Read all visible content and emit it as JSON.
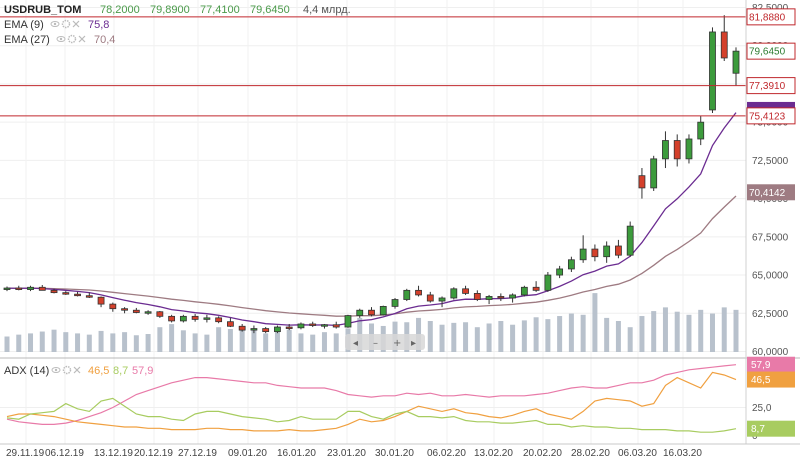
{
  "legend": {
    "symbol": "USDRUB_TOM",
    "open": "78,2000",
    "high": "79,8900",
    "low": "77,4100",
    "close": "79,6450",
    "volume": "4,4 млрд.",
    "ema9_label": "EMA (9)",
    "ema9_value": "75,8",
    "ema27_label": "EMA (27)",
    "ema27_value": "70,4"
  },
  "adx_legend": {
    "label": "ADX (14)",
    "adx": "46,5",
    "pdi": "8,7",
    "mdi": "57,9"
  },
  "price_axis_ticks": [
    "82,5000",
    "80,0000",
    "77,5000",
    "75,0000",
    "72,5000",
    "70,0000",
    "67,5000",
    "65,0000",
    "62,5000",
    "60,0000"
  ],
  "adx_axis_ticks": [
    "25,0",
    "0"
  ],
  "date_ticks": [
    "29.11.19",
    "06.12.19",
    "13.12.19",
    "20.12.19",
    "27.12.19",
    "09.01.20",
    "16.01.20",
    "23.01.20",
    "30.01.20",
    "06.02.20",
    "13.02.20",
    "20.02.20",
    "28.02.20",
    "06.03.20",
    "16.03.20"
  ],
  "tags": {
    "level1": "81,8880",
    "close": "79,6450",
    "level2": "77,3910",
    "level3": "75,4123",
    "ema27": "70,4142",
    "mdi": "57,9",
    "adx": "46,5",
    "pdi": "8,7"
  },
  "colors": {
    "up": "#3c9b3c",
    "down": "#d4402b",
    "ema9": "#6b2c91",
    "ema27": "#9e7b82",
    "level": "#c0282d",
    "volume": "#b8c1cc",
    "adx": "#f0a040",
    "pdi": "#a8cc60",
    "mdi": "#e87aa8"
  },
  "chart_data": {
    "type": "candlestick",
    "symbol": "USDRUB_TOM",
    "dates": [
      "29.11.19",
      "06.12.19",
      "13.12.19",
      "20.12.19",
      "27.12.19",
      "09.01.20",
      "16.01.20",
      "23.01.20",
      "30.01.20",
      "06.02.20",
      "13.02.20",
      "20.02.20",
      "28.02.20",
      "06.03.20",
      "16.03.20"
    ],
    "candles": [
      [
        64.1,
        64.25,
        63.95,
        64.15
      ],
      [
        64.15,
        64.3,
        64.0,
        64.05
      ],
      [
        64.05,
        64.3,
        63.95,
        64.2
      ],
      [
        64.2,
        64.35,
        64.0,
        64.0
      ],
      [
        64.0,
        64.1,
        63.8,
        63.85
      ],
      [
        63.85,
        63.95,
        63.7,
        63.75
      ],
      [
        63.75,
        63.9,
        63.6,
        63.65
      ],
      [
        63.65,
        63.85,
        63.5,
        63.55
      ],
      [
        63.55,
        63.6,
        62.9,
        63.1
      ],
      [
        63.1,
        63.2,
        62.6,
        62.8
      ],
      [
        62.8,
        62.9,
        62.5,
        62.7
      ],
      [
        62.7,
        62.85,
        62.5,
        62.55
      ],
      [
        62.55,
        62.7,
        62.4,
        62.6
      ],
      [
        62.6,
        62.65,
        62.2,
        62.3
      ],
      [
        62.3,
        62.4,
        61.9,
        62.0
      ],
      [
        62.0,
        62.4,
        61.9,
        62.3
      ],
      [
        62.3,
        62.45,
        61.95,
        62.1
      ],
      [
        62.1,
        62.4,
        61.9,
        62.2
      ],
      [
        62.2,
        62.3,
        61.85,
        61.95
      ],
      [
        61.95,
        62.2,
        61.6,
        61.65
      ],
      [
        61.65,
        61.8,
        61.3,
        61.4
      ],
      [
        61.4,
        61.7,
        61.2,
        61.5
      ],
      [
        61.5,
        61.6,
        61.2,
        61.3
      ],
      [
        61.3,
        61.7,
        61.2,
        61.6
      ],
      [
        61.6,
        61.8,
        61.4,
        61.55
      ],
      [
        61.55,
        61.9,
        61.45,
        61.8
      ],
      [
        61.8,
        61.95,
        61.6,
        61.7
      ],
      [
        61.7,
        61.8,
        61.5,
        61.75
      ],
      [
        61.75,
        61.95,
        61.5,
        61.6
      ],
      [
        61.6,
        62.4,
        61.55,
        62.35
      ],
      [
        62.35,
        62.8,
        62.2,
        62.7
      ],
      [
        62.7,
        62.9,
        62.3,
        62.4
      ],
      [
        62.4,
        63.0,
        62.35,
        62.95
      ],
      [
        62.95,
        63.5,
        62.8,
        63.4
      ],
      [
        63.4,
        64.1,
        63.3,
        64.0
      ],
      [
        64.0,
        64.3,
        63.6,
        63.7
      ],
      [
        63.7,
        63.9,
        63.2,
        63.3
      ],
      [
        63.3,
        63.6,
        62.9,
        63.5
      ],
      [
        63.5,
        64.2,
        63.4,
        64.1
      ],
      [
        64.1,
        64.3,
        63.7,
        63.8
      ],
      [
        63.8,
        64.0,
        63.3,
        63.4
      ],
      [
        63.4,
        63.7,
        63.1,
        63.6
      ],
      [
        63.6,
        63.8,
        63.3,
        63.5
      ],
      [
        63.5,
        63.8,
        63.2,
        63.7
      ],
      [
        63.7,
        64.3,
        63.6,
        64.2
      ],
      [
        64.2,
        64.6,
        63.9,
        64.0
      ],
      [
        64.0,
        65.2,
        63.9,
        65.0
      ],
      [
        65.0,
        65.6,
        64.8,
        65.4
      ],
      [
        65.4,
        66.2,
        65.2,
        66.0
      ],
      [
        66.0,
        67.6,
        65.8,
        66.7
      ],
      [
        66.7,
        67.0,
        65.9,
        66.2
      ],
      [
        66.2,
        67.2,
        65.8,
        66.9
      ],
      [
        66.9,
        67.3,
        66.1,
        66.3
      ],
      [
        66.3,
        68.5,
        66.2,
        68.2
      ],
      [
        71.5,
        72.0,
        70.0,
        70.7
      ],
      [
        70.7,
        72.8,
        70.5,
        72.6
      ],
      [
        72.6,
        74.4,
        72.0,
        73.8
      ],
      [
        73.8,
        74.2,
        72.1,
        72.6
      ],
      [
        72.6,
        74.2,
        72.3,
        73.9
      ],
      [
        73.9,
        75.4,
        73.5,
        75.0
      ],
      [
        75.8,
        81.2,
        75.6,
        80.9
      ],
      [
        80.9,
        82.0,
        79.0,
        79.2
      ],
      [
        78.2,
        79.89,
        77.41,
        79.645
      ]
    ],
    "ema9_value": 75.8,
    "ema27_value": 70.4,
    "levels": [
      81.888,
      77.391,
      75.4123
    ],
    "ylim": [
      60.0,
      82.5
    ],
    "adx14": {
      "adx": 46.5,
      "plus_di": 8.7,
      "minus_di": 57.9,
      "ylim": [
        0,
        60
      ]
    }
  }
}
